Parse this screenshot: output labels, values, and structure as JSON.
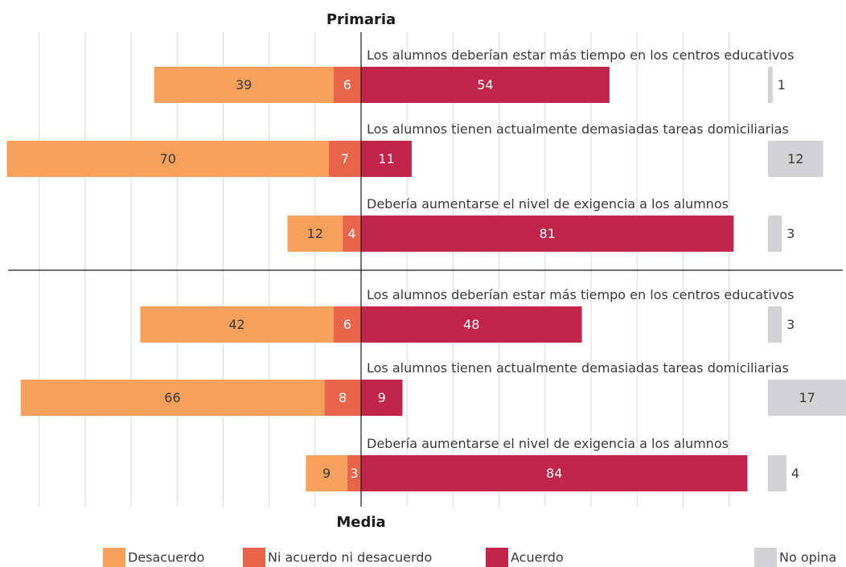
{
  "chart_data": {
    "type": "bar",
    "stacked": "diverging",
    "grid": true,
    "legend_placement": "bottom",
    "colors": {
      "desacuerdo": "#f5a15d",
      "ni_acuerdo": "#e8644a",
      "acuerdo": "#c2254a",
      "no_opina": "#d2d2d4",
      "grid": "#d9d9d9",
      "axis": "#1a1a1a"
    },
    "legend": [
      "Desacuerdo",
      "Ni acuerdo ni desacuerdo",
      "Acuerdo",
      "No opina"
    ],
    "groups": [
      {
        "title": "Primaria",
        "items": [
          {
            "label": "Los alumnos deberían estar más tiempo en los centros educativos",
            "desacuerdo": 39,
            "ni": 6,
            "acuerdo": 54,
            "no_opina": 1
          },
          {
            "label": "Los alumnos tienen actualmente demasiadas tareas domiciliarias",
            "desacuerdo": 70,
            "ni": 7,
            "acuerdo": 11,
            "no_opina": 12
          },
          {
            "label": "Debería aumentarse el nivel de exigencia a los alumnos",
            "desacuerdo": 12,
            "ni": 4,
            "acuerdo": 81,
            "no_opina": 3
          }
        ]
      },
      {
        "title": "Media",
        "items": [
          {
            "label": "Los alumnos deberían estar más tiempo en los centros educativos",
            "desacuerdo": 42,
            "ni": 6,
            "acuerdo": 48,
            "no_opina": 3
          },
          {
            "label": "Los alumnos tienen actualmente demasiadas tareas domiciliarias",
            "desacuerdo": 66,
            "ni": 8,
            "acuerdo": 9,
            "no_opina": 17
          },
          {
            "label": "Debería aumentarse el nivel de exigencia a los alumnos",
            "desacuerdo": 9,
            "ni": 3,
            "acuerdo": 84,
            "no_opina": 4
          }
        ]
      }
    ]
  }
}
